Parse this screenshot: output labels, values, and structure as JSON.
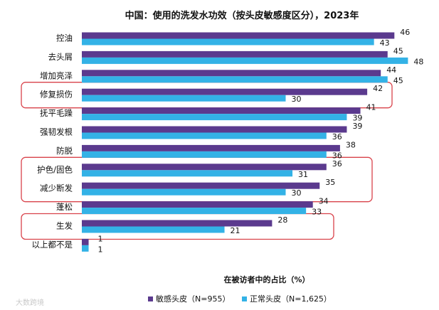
{
  "chart_data": {
    "type": "bar",
    "orientation": "horizontal",
    "title": "中国：使用的洗发水功效（按头皮敏感度区分），2023年",
    "xlabel": "在被访者中的占比（%）",
    "ylabel": "",
    "xlim": [
      0,
      50
    ],
    "grid": false,
    "legend_position": "bottom",
    "categories": [
      "控油",
      "去头屑",
      "增加亮泽",
      "修复损伤",
      "抚平毛躁",
      "强韧发根",
      "防脱",
      "护色/固色",
      "减少断发",
      "蓬松",
      "生发",
      "以上都不是"
    ],
    "series": [
      {
        "name": "敏感头皮（N=955）",
        "color": "#5b3a8e",
        "values": [
          46,
          45,
          44,
          42,
          41,
          39,
          38,
          36,
          35,
          34,
          28,
          1
        ]
      },
      {
        "name": "正常头皮（N=1,625）",
        "color": "#33b2e6",
        "values": [
          43,
          48,
          45,
          30,
          39,
          36,
          36,
          31,
          30,
          33,
          21,
          1
        ]
      }
    ],
    "highlighted_categories": [
      [
        "修复损伤"
      ],
      [
        "护色/固色",
        "减少断发"
      ],
      [
        "生发"
      ]
    ]
  },
  "watermark": "大数跨境"
}
